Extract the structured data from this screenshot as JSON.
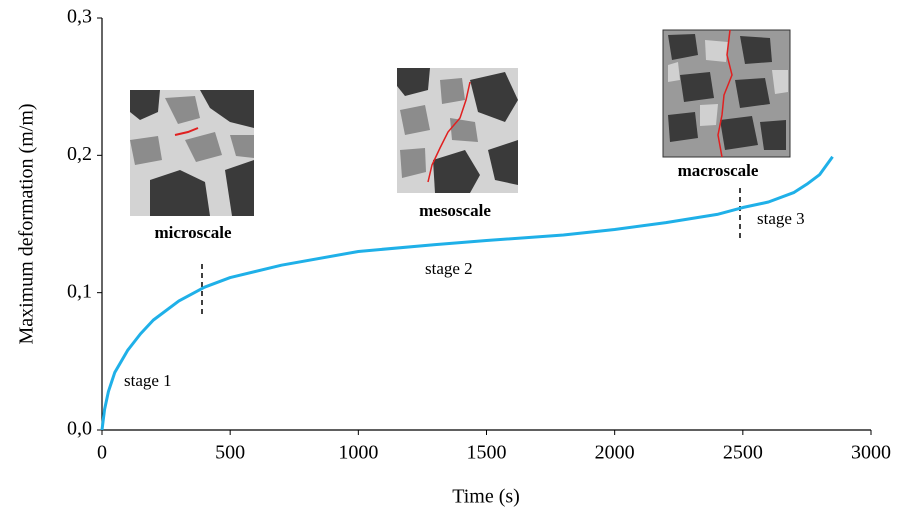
{
  "chart_data": {
    "type": "line",
    "x_label": "Time (s)",
    "y_label": "Maximum deformation (m/m)",
    "x": [
      0,
      10,
      25,
      50,
      100,
      150,
      200,
      300,
      400,
      500,
      700,
      1000,
      1300,
      1500,
      1800,
      2000,
      2200,
      2400,
      2500,
      2600,
      2700,
      2750,
      2800,
      2850
    ],
    "values": [
      0,
      0.015,
      0.028,
      0.042,
      0.058,
      0.07,
      0.08,
      0.094,
      0.104,
      0.111,
      0.12,
      0.13,
      0.135,
      0.138,
      0.142,
      0.146,
      0.151,
      0.157,
      0.162,
      0.166,
      0.173,
      0.179,
      0.186,
      0.199
    ],
    "color": "#1fb0e8",
    "xlim": [
      0,
      3000
    ],
    "xticks": [
      0,
      500,
      1000,
      1500,
      2000,
      2500,
      3000
    ],
    "ylim": [
      0,
      0.3
    ],
    "yticks": [
      {
        "value": 0,
        "label": "0,0"
      },
      {
        "value": 0.1,
        "label": "0,1"
      },
      {
        "value": 0.2,
        "label": "0,2"
      },
      {
        "value": 0.3,
        "label": "0,3"
      }
    ],
    "annotations": [
      "stage 1",
      "stage 2",
      "stage 3",
      "microscale",
      "mesoscale",
      "macroscale"
    ]
  }
}
